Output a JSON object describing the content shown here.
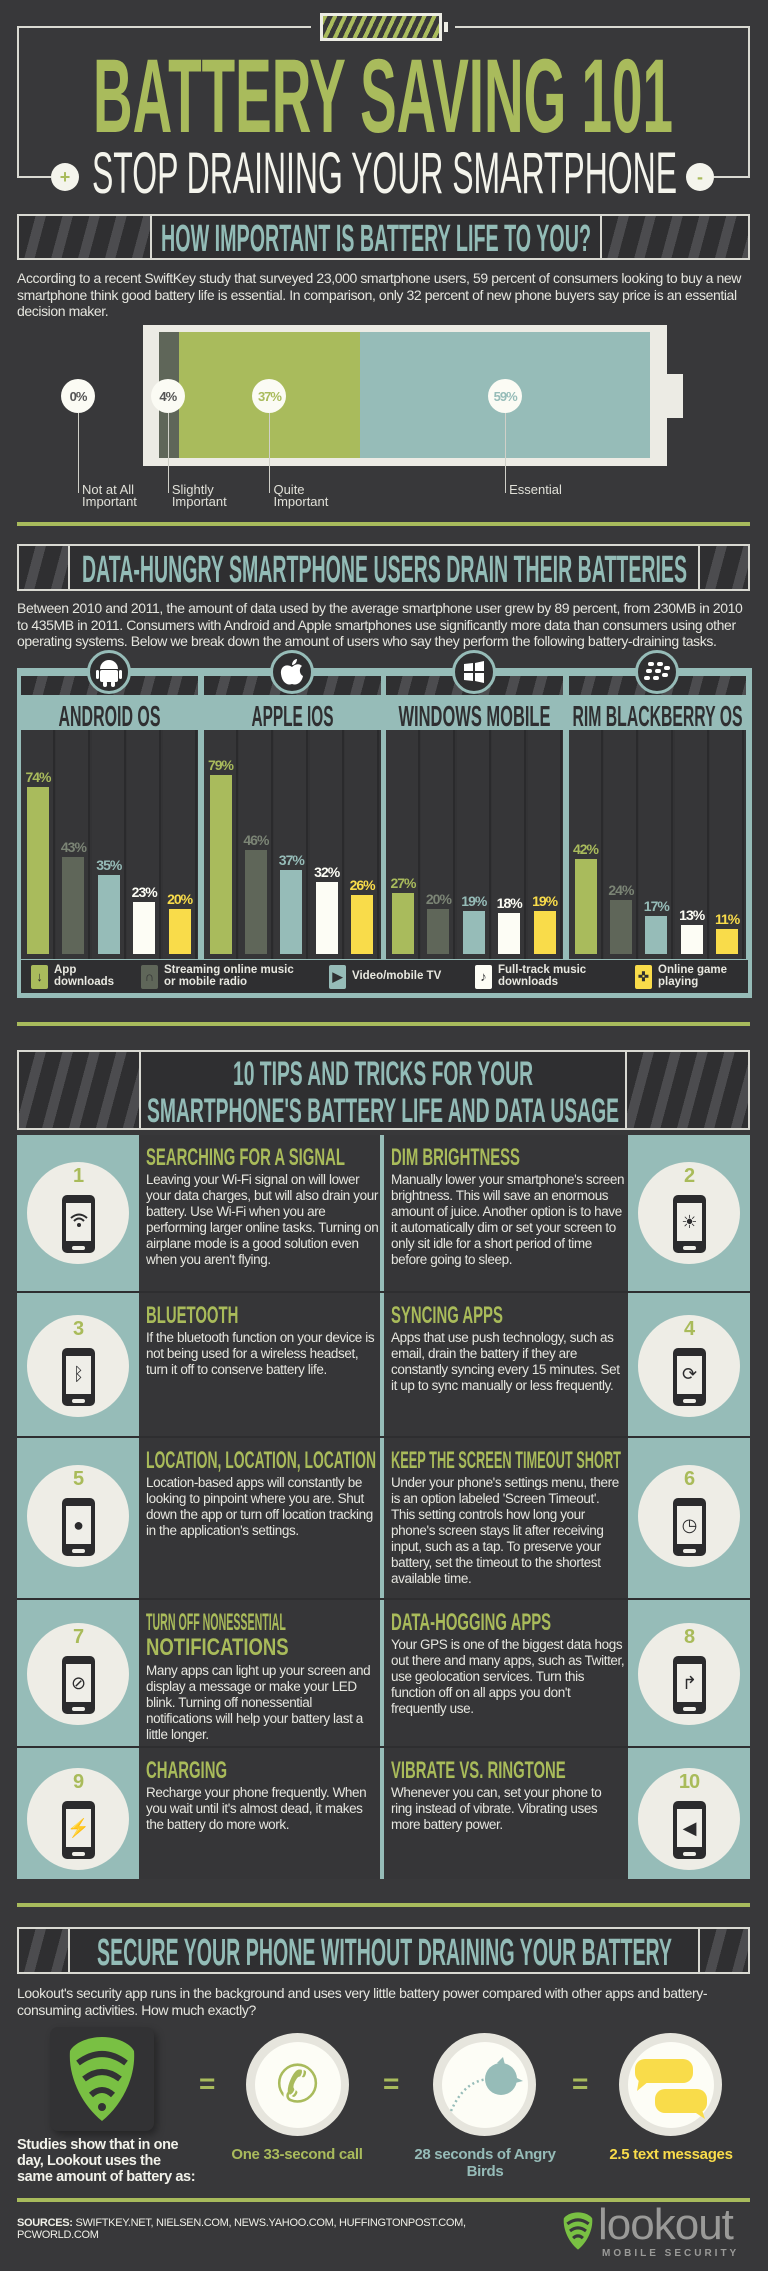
{
  "header": {
    "title": "BATTERY SAVING 101",
    "subtitle": "STOP DRAINING YOUR SMARTPHONE",
    "plus": "+",
    "minus": "-"
  },
  "section_importance": {
    "heading": "HOW IMPORTANT IS BATTERY LIFE TO YOU?",
    "paragraph": "According to a recent SwiftKey study that surveyed 23,000 smartphone users, 59 percent of consumers looking to buy a new smartphone think good battery life is essential. In comparison, only 32 percent of new phone buyers say price is an essential decision maker."
  },
  "section_data": {
    "heading": "DATA-HUNGRY SMARTPHONE USERS DRAIN THEIR BATTERIES",
    "paragraph": "Between 2010 and 2011, the amount of data used by the average smartphone user grew by 89 percent, from 230MB in 2010 to 435MB in 2011. Consumers with Android and Apple smartphones use significantly more data than consumers using other operating systems. Below we break down the amount of users who say they perform the following battery-draining tasks."
  },
  "chart_data": [
    {
      "type": "bar",
      "orientation": "stacked-horizontal",
      "categories": [
        "Not at All Important",
        "Slightly Important",
        "Quite Important",
        "Essential"
      ],
      "values": [
        0,
        4,
        37,
        59
      ],
      "value_labels": [
        "0%",
        "4%",
        "37%",
        "59%"
      ],
      "colors": [
        "#fbfbf4",
        "#5f6659",
        "#a9bb5c",
        "#96bcb8"
      ]
    },
    {
      "type": "bar",
      "categories": [
        "ANDROID OS",
        "APPLE IOS",
        "WINDOWS MOBILE",
        "RIM BLACKBERRY OS"
      ],
      "category_icons": [
        "android-icon",
        "apple-icon",
        "windows-icon",
        "blackberry-icon"
      ],
      "ylim": [
        0,
        100
      ],
      "grid": false,
      "legend": "bottom",
      "series": [
        {
          "name": "App downloads",
          "values": [
            74,
            79,
            27,
            42
          ],
          "color": "#a9bb5c",
          "label_color": "#a9bb5c",
          "icon": "download-arrow-icon",
          "glyph": "↓"
        },
        {
          "name": "Streaming online music or mobile radio",
          "values": [
            43,
            46,
            20,
            24
          ],
          "color": "#5f6659",
          "label_color": "#7b8475",
          "icon": "headphones-icon",
          "glyph": "∩"
        },
        {
          "name": "Video/mobile TV",
          "values": [
            35,
            37,
            19,
            17
          ],
          "color": "#96bcb8",
          "label_color": "#96bcb8",
          "icon": "play-icon",
          "glyph": "▶"
        },
        {
          "name": "Full-track music downloads",
          "values": [
            23,
            32,
            18,
            13
          ],
          "color": "#fdfdf5",
          "label_color": "#fdfdf5",
          "icon": "music-note-icon",
          "glyph": "♪"
        },
        {
          "name": "Online game playing",
          "values": [
            20,
            26,
            19,
            11
          ],
          "color": "#f9dc4a",
          "label_color": "#f9dc4a",
          "icon": "gamepad-icon",
          "glyph": "✜"
        }
      ]
    }
  ],
  "section_tips": {
    "heading_line1": "10 TIPS AND TRICKS FOR YOUR",
    "heading_line2": "SMARTPHONE'S BATTERY LIFE AND DATA USAGE",
    "tips": [
      {
        "number": "1",
        "title": "SEARCHING FOR A SIGNAL",
        "body": "Leaving your Wi-Fi signal on will lower your data charges, but will also drain your battery. Use Wi-Fi when you are performing larger online tasks. Turning on airplane mode is a good solution even when you aren't flying.",
        "icon": "wifi-icon",
        "glyph": "ᯤ"
      },
      {
        "number": "2",
        "title": "DIM BRIGHTNESS",
        "body": "Manually lower your smartphone's screen brightness. This will save an enormous amount of juice. Another option is to have it automatically dim or set your screen to only sit idle for a short period of time before going to sleep.",
        "icon": "sun-icon",
        "glyph": "☀"
      },
      {
        "number": "3",
        "title": "BLUETOOTH",
        "body": "If the bluetooth function on your device is not being used for a wireless headset, turn it off to conserve battery life.",
        "icon": "bluetooth-icon",
        "glyph": "ᛒ"
      },
      {
        "number": "4",
        "title": "SYNCING APPS",
        "body": "Apps that use push technology, such as email, drain the battery if they are constantly syncing every 15 minutes. Set it up to sync manually or less frequently.",
        "icon": "sync-icon",
        "glyph": "⟳"
      },
      {
        "number": "5",
        "title": "LOCATION, LOCATION, LOCATION",
        "body": "Location-based apps will constantly be looking to pinpoint where you are. Shut down the app or turn off location tracking in the application's settings.",
        "icon": "map-pin-icon",
        "glyph": "●"
      },
      {
        "number": "6",
        "title": "KEEP THE SCREEN TIMEOUT SHORT",
        "body": "Under your phone's settings menu, there is an option labeled 'Screen Timeout'. This setting controls how long your phone's screen stays lit after receiving input, such as a tap. To preserve your battery, set the timeout to the shortest available time.",
        "icon": "clock-icon",
        "glyph": "◷"
      },
      {
        "number": "7",
        "title": "TURN OFF NONESSENTIAL NOTIFICATIONS",
        "body": "Many apps can light up your screen and display a message or make your LED blink. Turning off nonessential notifications will help your battery last a little longer.",
        "icon": "no-notification-icon",
        "glyph": "⊘"
      },
      {
        "number": "8",
        "title": "DATA-HOGGING APPS",
        "body": "Your GPS is one of the biggest data hogs out there and many apps, such as Twitter, use geolocation services. Turn this function off on all apps you don't frequently use.",
        "icon": "direction-arrow-icon",
        "glyph": "↱"
      },
      {
        "number": "9",
        "title": "CHARGING",
        "body": "Recharge your phone frequently. When you wait until it's almost dead, it makes the battery do more work.",
        "icon": "battery-charging-icon",
        "glyph": "⚡"
      },
      {
        "number": "10",
        "title": "VIBRATE VS. RINGTONE",
        "body": "Whenever you can, set your phone to ring instead of vibrate. Vibrating uses more battery power.",
        "icon": "speaker-icon",
        "glyph": "◀"
      }
    ]
  },
  "section_secure": {
    "heading": "SECURE YOUR PHONE WITHOUT DRAINING YOUR BATTERY",
    "paragraph": "Lookout's security app runs in the background and uses very little battery power compared with other apps and battery-consuming activities. How much exactly?",
    "studies": "Studies show that in one day, Lookout uses the same amount of battery as:",
    "equals": "=",
    "equivalents": [
      {
        "label": "One 33-second call",
        "icon": "phone-handset-icon",
        "color": "#a9bb5c"
      },
      {
        "label": "28 seconds of Angry Birds",
        "icon": "angry-bird-icon",
        "color": "#96bcb8"
      },
      {
        "label": "2.5 text messages",
        "icon": "text-bubbles-icon",
        "color": "#f9dc4a"
      }
    ]
  },
  "footer": {
    "sources_label": "SOURCES:",
    "sources": "SWIFTKEY.NET, NIELSEN.COM, NEWS.YAHOO.COM, HUFFINGTONPOST.COM, PCWORLD.COM",
    "logo_name": "lookout",
    "logo_tagline": "MOBILE SECURITY"
  },
  "colors": {
    "background": "#38383a",
    "green": "#a9bb5c",
    "teal": "#96bcb8",
    "yellow": "#f9dc4a"
  }
}
